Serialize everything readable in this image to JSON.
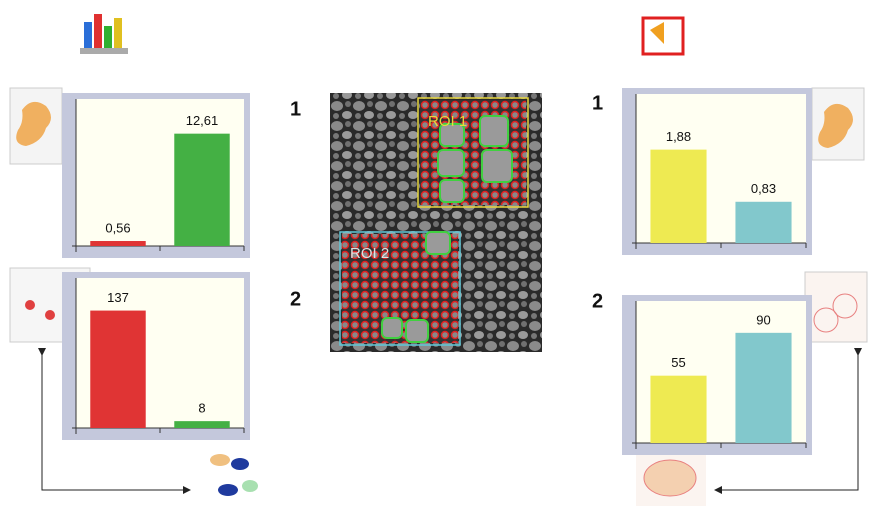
{
  "chart_data": [
    {
      "type": "bar",
      "values": [
        0.56,
        12.61
      ],
      "value_labels": [
        "0,56",
        "12,61"
      ],
      "colors": [
        "#e03434",
        "#44b044"
      ],
      "ylim": [
        0,
        16.5
      ]
    },
    {
      "type": "bar",
      "values": [
        137,
        8
      ],
      "value_labels": [
        "137",
        "8"
      ],
      "colors": [
        "#e03434",
        "#44b044"
      ],
      "ylim": [
        0,
        175
      ]
    },
    {
      "type": "bar",
      "values": [
        1.88,
        0.83
      ],
      "value_labels": [
        "1,88",
        "0,83"
      ],
      "colors": [
        "#eeea52",
        "#82c8cc"
      ],
      "ylim": [
        0,
        3
      ]
    },
    {
      "type": "bar",
      "values": [
        55,
        90
      ],
      "value_labels": [
        "55",
        "90"
      ],
      "colors": [
        "#eeea52",
        "#82c8cc"
      ],
      "ylim": [
        0,
        116
      ]
    }
  ],
  "labels": {
    "left_1": "1",
    "left_2": "2",
    "right_1": "1",
    "right_2": "2",
    "roi_1": "ROI 1",
    "roi_2": "ROI 2"
  }
}
